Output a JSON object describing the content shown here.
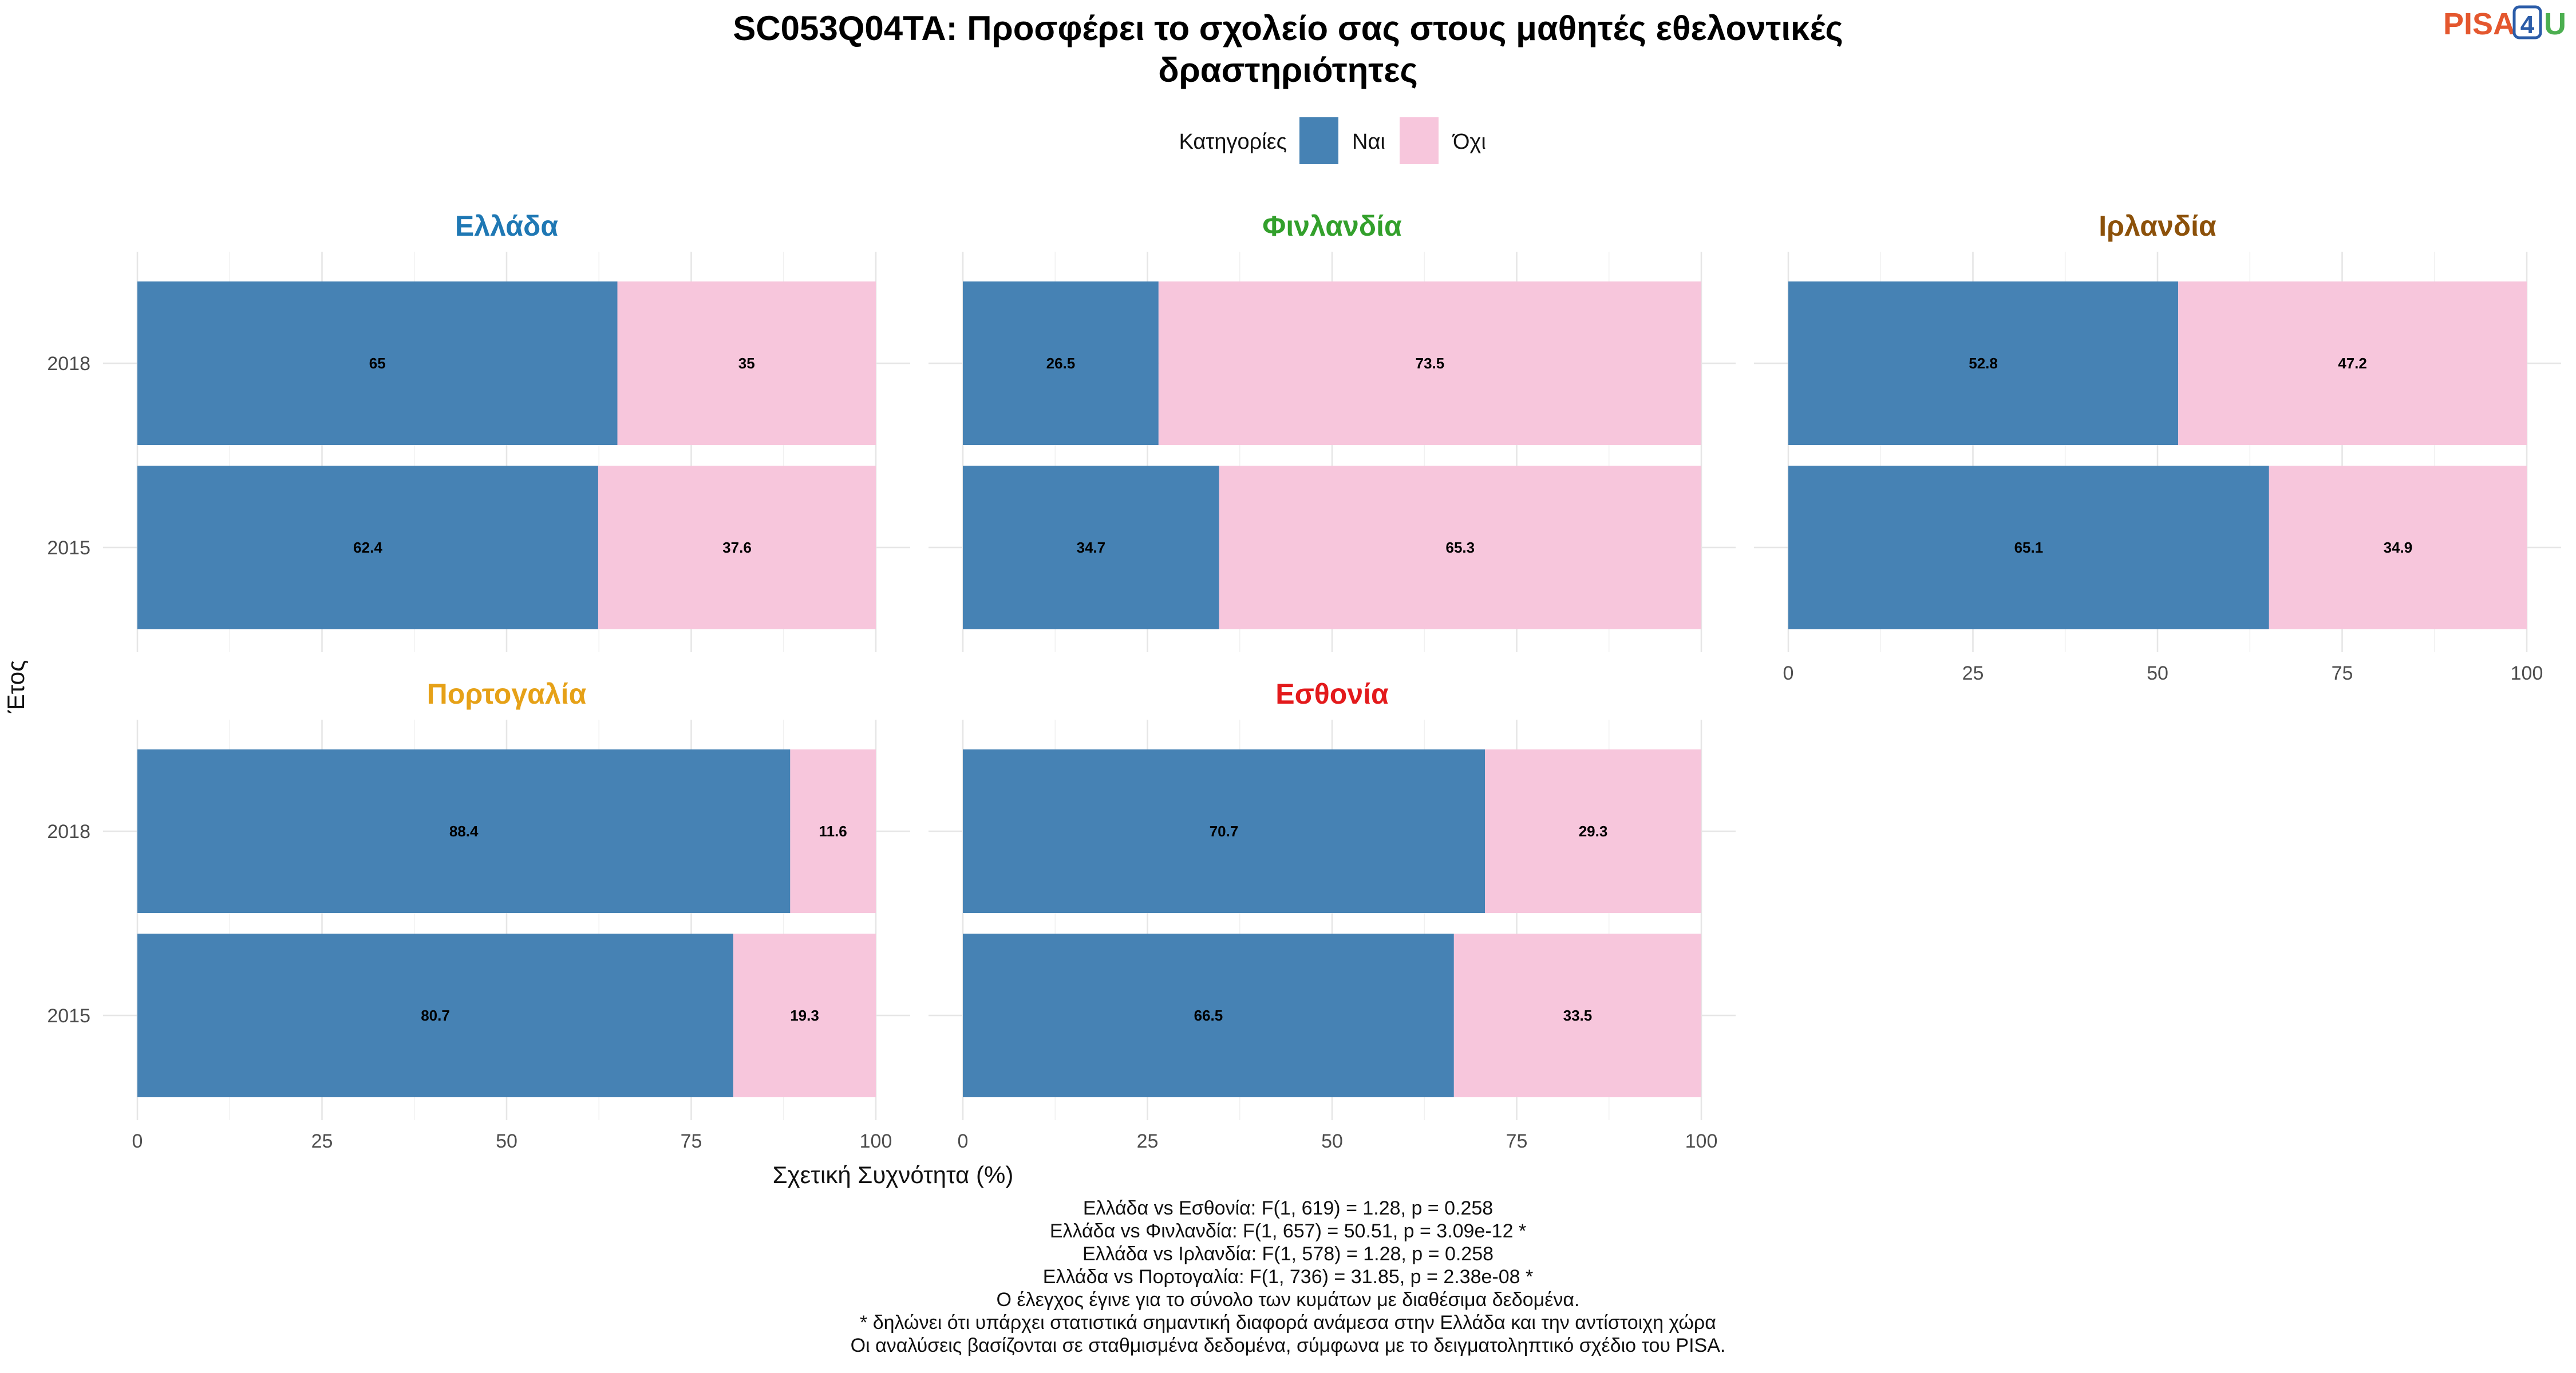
{
  "title_lines": [
    "SC053Q04TA: Προσφέρει το σχολείο σας στους μαθητές εθελοντικές",
    "δραστηριότητες"
  ],
  "logo": {
    "pisa": "PISA",
    "four": "4",
    "u": "U",
    "colors": {
      "pisa": "#e4572e",
      "four": "#2b5ca8",
      "u": "#4caf50"
    }
  },
  "legend": {
    "title": "Κατηγορίες",
    "items": [
      {
        "label": "Ναι",
        "color": "#4682b4"
      },
      {
        "label": "Όχι",
        "color": "#f7c6dc"
      }
    ]
  },
  "chart_data": {
    "type": "bar",
    "orientation": "horizontal",
    "stacked": true,
    "xlabel": "Σχετική Συχνότητα (%)",
    "ylabel": "Έτος",
    "xlim": [
      0,
      100
    ],
    "xticks": [
      0,
      25,
      50,
      75,
      100
    ],
    "categories": [
      "2018",
      "2015"
    ],
    "panels": [
      {
        "name": "Ελλάδα",
        "title_color": "#1f78b4",
        "series": [
          {
            "name": "Ναι",
            "values": [
              65,
              62.4
            ]
          },
          {
            "name": "Όχι",
            "values": [
              35,
              37.6
            ]
          }
        ]
      },
      {
        "name": "Φινλανδία",
        "title_color": "#33a02c",
        "series": [
          {
            "name": "Ναι",
            "values": [
              26.5,
              34.7
            ]
          },
          {
            "name": "Όχι",
            "values": [
              73.5,
              65.3
            ]
          }
        ]
      },
      {
        "name": "Ιρλανδία",
        "title_color": "#8c510a",
        "series": [
          {
            "name": "Ναι",
            "values": [
              52.8,
              65.1
            ]
          },
          {
            "name": "Όχι",
            "values": [
              47.2,
              34.9
            ]
          }
        ]
      },
      {
        "name": "Πορτογαλία",
        "title_color": "#e6a117",
        "series": [
          {
            "name": "Ναι",
            "values": [
              88.4,
              80.7
            ]
          },
          {
            "name": "Όχι",
            "values": [
              11.6,
              19.3
            ]
          }
        ]
      },
      {
        "name": "Εσθονία",
        "title_color": "#e31a1c",
        "series": [
          {
            "name": "Ναι",
            "values": [
              70.7,
              66.5
            ]
          },
          {
            "name": "Όχι",
            "values": [
              29.3,
              33.5
            ]
          }
        ]
      }
    ]
  },
  "notes": [
    "Ελλάδα vs Εσθονία: F(1, 619) = 1.28, p = 0.258",
    "Ελλάδα vs Φινλανδία: F(1, 657) = 50.51, p = 3.09e-12 *",
    "Ελλάδα vs Ιρλανδία: F(1, 578) = 1.28, p = 0.258",
    "Ελλάδα vs Πορτογαλία: F(1, 736) = 31.85, p = 2.38e-08 *",
    "Ο έλεγχος έγινε για το σύνολο των κυμάτων με διαθέσιμα δεδομένα.",
    "* δηλώνει ότι υπάρχει στατιστικά σημαντική διαφορά ανάμεσα στην Ελλάδα και την αντίστοιχη χώρα",
    "Οι αναλύσεις βασίζονται σε σταθμισμένα δεδομένα, σύμφωνα με το δειγματοληπτικό σχέδιο του PISA."
  ]
}
